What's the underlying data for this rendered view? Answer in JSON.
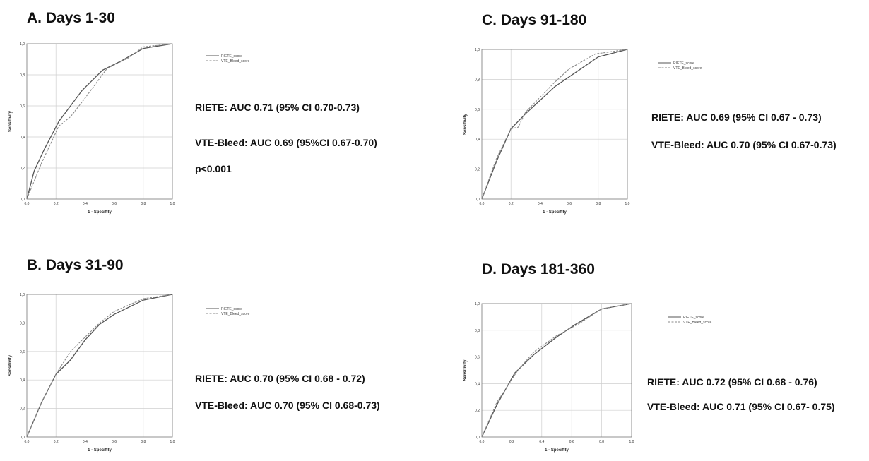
{
  "colors": {
    "riete": "#555555",
    "vte_bleed": "#8a8a8a",
    "grid": "#cfcfcf",
    "frame": "#777777"
  },
  "chart_data": [
    {
      "type": "line",
      "title": "A. Days 1-30",
      "xlabel": "1 - Specifity",
      "ylabel": "Sensitivity",
      "xlim": [
        0,
        1
      ],
      "ylim": [
        0,
        1
      ],
      "xticks": [
        "0,0",
        "0,2",
        "0,4",
        "0,6",
        "0,8",
        "1,0"
      ],
      "yticks": [
        "0,0",
        "0,2",
        "0,4",
        "0,6",
        "0,8",
        "1,0"
      ],
      "grid": true,
      "legend": [
        "RIETE_score",
        "VTE_Bleed_score"
      ],
      "series": [
        {
          "name": "RIETE_score",
          "x": [
            0,
            0.05,
            0.12,
            0.22,
            0.38,
            0.52,
            0.65,
            0.8,
            1.0
          ],
          "y": [
            0,
            0.18,
            0.32,
            0.5,
            0.7,
            0.83,
            0.89,
            0.97,
            1.0
          ]
        },
        {
          "name": "VTE_Bleed_score",
          "x": [
            0,
            0.1,
            0.22,
            0.3,
            0.4,
            0.55,
            0.7,
            0.8,
            1.0
          ],
          "y": [
            0,
            0.23,
            0.47,
            0.53,
            0.65,
            0.84,
            0.91,
            0.98,
            1.0
          ]
        }
      ],
      "stats": [
        "RIETE: AUC 0.71 (95% CI 0.70-0.73)",
        "VTE-Bleed: AUC 0.69 (95%CI 0.67-0.70)",
        "p<0.001"
      ]
    },
    {
      "type": "line",
      "title": "C. Days 91-180",
      "xlabel": "1 - Specifity",
      "ylabel": "Sensitivity",
      "xlim": [
        0,
        1
      ],
      "ylim": [
        0,
        1
      ],
      "xticks": [
        "0,0",
        "0,2",
        "0,4",
        "0,6",
        "0,8",
        "1,0"
      ],
      "yticks": [
        "0,0",
        "0,2",
        "0,4",
        "0,6",
        "0,8",
        "1,0"
      ],
      "grid": true,
      "legend": [
        "RIETE_score",
        "VTE_Bleed_score"
      ],
      "series": [
        {
          "name": "RIETE_score",
          "x": [
            0,
            0.1,
            0.2,
            0.3,
            0.5,
            0.65,
            0.8,
            1.0
          ],
          "y": [
            0,
            0.25,
            0.47,
            0.57,
            0.75,
            0.85,
            0.95,
            1.0
          ]
        },
        {
          "name": "VTE_Bleed_score",
          "x": [
            0,
            0.1,
            0.2,
            0.25,
            0.3,
            0.5,
            0.6,
            0.78,
            1.0
          ],
          "y": [
            0,
            0.27,
            0.47,
            0.48,
            0.58,
            0.78,
            0.87,
            0.97,
            1.0
          ]
        }
      ],
      "stats": [
        "RIETE: AUC 0.69 (95% CI 0.67 - 0.73)",
        "VTE-Bleed: AUC 0.70 (95% CI 0.67-0.73)"
      ]
    },
    {
      "type": "line",
      "title": "B. Days 31-90",
      "xlabel": "1 - Specifity",
      "ylabel": "Sensitivity",
      "xlim": [
        0,
        1
      ],
      "ylim": [
        0,
        1
      ],
      "xticks": [
        "0,0",
        "0,2",
        "0,4",
        "0,6",
        "0,8",
        "1,0"
      ],
      "yticks": [
        "0,0",
        "0,2",
        "0,4",
        "0,6",
        "0,8",
        "1,0"
      ],
      "grid": true,
      "legend": [
        "RIETE_score",
        "VTE_Bleed_score"
      ],
      "series": [
        {
          "name": "RIETE_score",
          "x": [
            0,
            0.1,
            0.2,
            0.3,
            0.4,
            0.5,
            0.6,
            0.8,
            1.0
          ],
          "y": [
            0,
            0.24,
            0.44,
            0.54,
            0.68,
            0.79,
            0.86,
            0.96,
            1.0
          ]
        },
        {
          "name": "VTE_Bleed_score",
          "x": [
            0,
            0.1,
            0.2,
            0.3,
            0.4,
            0.5,
            0.6,
            0.8,
            1.0
          ],
          "y": [
            0,
            0.24,
            0.44,
            0.6,
            0.7,
            0.8,
            0.88,
            0.97,
            1.0
          ]
        }
      ],
      "stats": [
        "RIETE: AUC 0.70 (95% CI 0.68 - 0.72)",
        "VTE-Bleed: AUC 0.70 (95% CI 0.68-0.73)"
      ]
    },
    {
      "type": "line",
      "title": "D. Days 181-360",
      "xlabel": "1 - Specifity",
      "ylabel": "Sensitivity",
      "xlim": [
        0,
        1
      ],
      "ylim": [
        0,
        1
      ],
      "xticks": [
        "0,0",
        "0,2",
        "0,4",
        "0,6",
        "0,8",
        "1,0"
      ],
      "yticks": [
        "0,0",
        "0,2",
        "0,4",
        "0,6",
        "0,8",
        "1,0"
      ],
      "grid": true,
      "legend": [
        "RIETE_score",
        "VTE_Bleed_score"
      ],
      "series": [
        {
          "name": "RIETE_score",
          "x": [
            0,
            0.1,
            0.22,
            0.35,
            0.5,
            0.62,
            0.8,
            1.0
          ],
          "y": [
            0,
            0.24,
            0.48,
            0.62,
            0.75,
            0.84,
            0.96,
            1.0
          ]
        },
        {
          "name": "VTE_Bleed_score",
          "x": [
            0,
            0.1,
            0.24,
            0.35,
            0.5,
            0.65,
            0.8,
            1.0
          ],
          "y": [
            0,
            0.26,
            0.5,
            0.64,
            0.76,
            0.85,
            0.96,
            1.0
          ]
        }
      ],
      "stats": [
        "RIETE: AUC 0.72 (95% CI 0.68 - 0.76)",
        "VTE-Bleed: AUC 0.71 (95% CI 0.67- 0.75)"
      ]
    }
  ]
}
